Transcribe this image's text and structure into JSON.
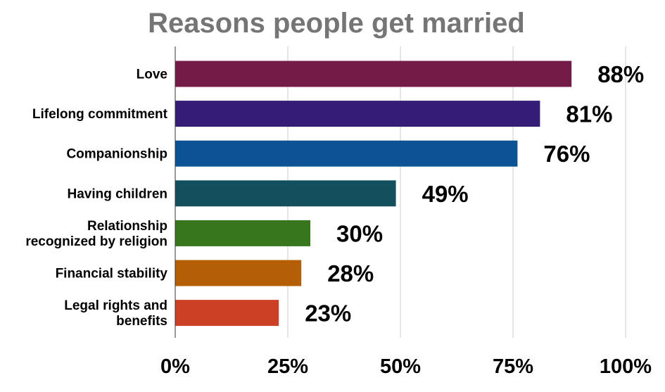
{
  "chart_data": {
    "type": "bar",
    "orientation": "horizontal",
    "title": "Reasons people get married",
    "categories": [
      [
        "Love"
      ],
      [
        "Lifelong commitment"
      ],
      [
        "Companionship"
      ],
      [
        "Having children"
      ],
      [
        "Relationship",
        "recognized by religion"
      ],
      [
        "Financial stability"
      ],
      [
        "Legal rights and",
        "benefits"
      ]
    ],
    "values": [
      88,
      81,
      76,
      49,
      30,
      28,
      23
    ],
    "value_labels": [
      "88%",
      "81%",
      "76%",
      "49%",
      "30%",
      "28%",
      "23%"
    ],
    "colors": [
      "#741b47",
      "#351c75",
      "#0b5394",
      "#134f5c",
      "#38761d",
      "#b45f06",
      "#cc4125"
    ],
    "xlim": [
      0,
      100
    ],
    "x_ticks": [
      0,
      25,
      50,
      75,
      100
    ],
    "x_tick_labels": [
      "0%",
      "25%",
      "50%",
      "75%",
      "100%"
    ],
    "xlabel": "",
    "ylabel": "",
    "grid": true,
    "legend": "none"
  }
}
